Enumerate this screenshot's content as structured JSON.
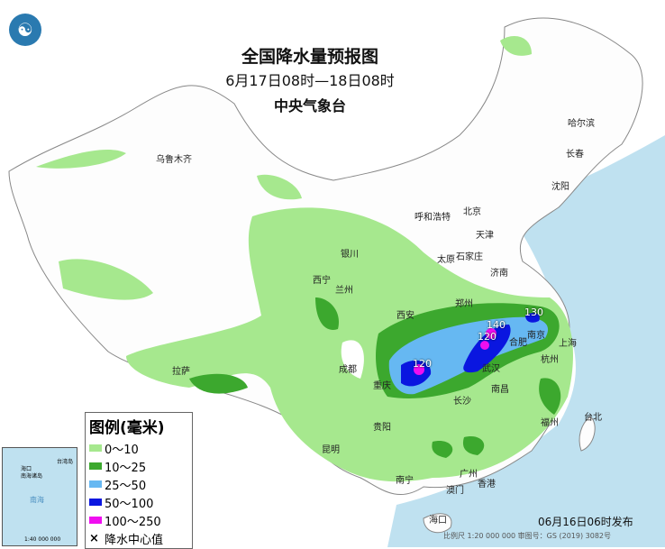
{
  "title": "全国降水量预报图",
  "period": "6月17日08时—18日08时",
  "issuer": "中央气象台",
  "issued": "06月16日06时发布",
  "scale": "比例尺 1:20 000 000    审图号：GS (2019) 3082号",
  "legend": {
    "title": "图例(毫米)",
    "items": [
      {
        "label": "0～10",
        "color": "#a6e88e"
      },
      {
        "label": "10～25",
        "color": "#3ca82e"
      },
      {
        "label": "25～50",
        "color": "#66b8f2"
      },
      {
        "label": "50～100",
        "color": "#0a16e0"
      },
      {
        "label": "100～250",
        "color": "#f00ef0"
      }
    ],
    "center_label": "降水中心值",
    "center_symbol": "×"
  },
  "inset": {
    "labels": [
      "南海诸岛",
      "海口",
      "南海",
      "台湾岛"
    ],
    "scale": "1:40 000 000"
  },
  "rain_centers": [
    "120",
    "140",
    "120",
    "130"
  ],
  "cities": [
    "乌鲁木齐",
    "哈尔滨",
    "长春",
    "沈阳",
    "呼和浩特",
    "北京",
    "天津",
    "石家庄",
    "太原",
    "济南",
    "银川",
    "西宁",
    "兰州",
    "郑州",
    "西安",
    "南京",
    "合肥",
    "上海",
    "武汉",
    "杭州",
    "成都",
    "重庆",
    "长沙",
    "南昌",
    "拉萨",
    "贵阳",
    "福州",
    "台北",
    "昆明",
    "南宁",
    "广州",
    "香港",
    "澳门",
    "海口"
  ]
}
